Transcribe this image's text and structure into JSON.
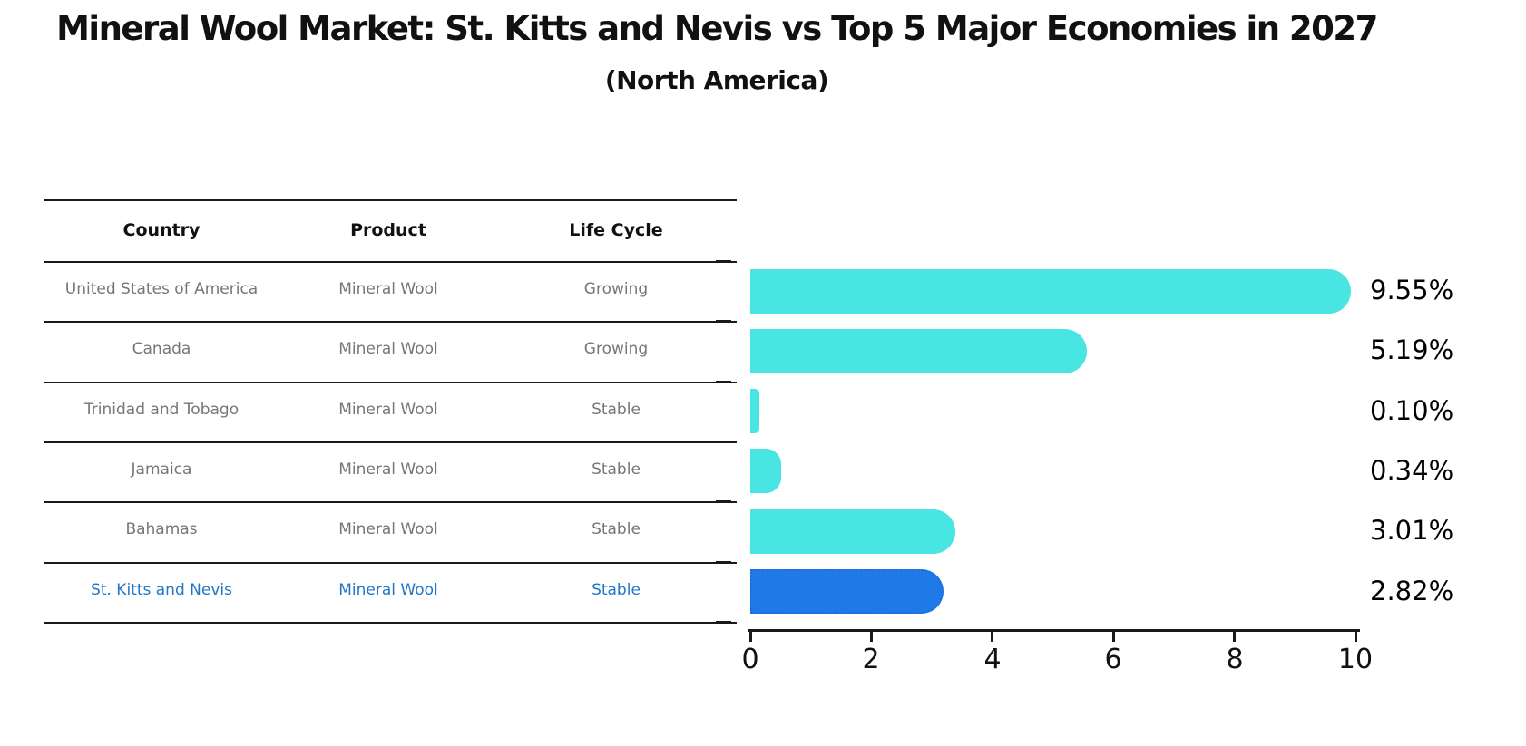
{
  "table": {
    "headers": [
      "Country",
      "Product",
      "Life Cycle"
    ],
    "rows": [
      {
        "country": "United States of America",
        "product": "Mineral Wool",
        "life_cycle": "Growing",
        "highlighted": false
      },
      {
        "country": "Canada",
        "product": "Mineral Wool",
        "life_cycle": "Growing",
        "highlighted": false
      },
      {
        "country": "Trinidad and Tobago",
        "product": "Mineral Wool",
        "life_cycle": "Stable",
        "highlighted": false
      },
      {
        "country": "Jamaica",
        "product": "Mineral Wool",
        "life_cycle": "Stable",
        "highlighted": false
      },
      {
        "country": "Bahamas",
        "product": "Mineral Wool",
        "life_cycle": "Stable",
        "highlighted": false
      },
      {
        "country": "St. Kitts and Nevis",
        "product": "Mineral Wool",
        "life_cycle": "Stable",
        "highlighted": true
      }
    ]
  },
  "chart_data": {
    "type": "bar",
    "orientation": "horizontal",
    "title": "Mineral Wool Market: St. Kitts and Nevis vs Top 5 Major Economies in 2027",
    "subtitle": "(North America)",
    "categories": [
      "United States of America",
      "Canada",
      "Trinidad and Tobago",
      "Jamaica",
      "Bahamas",
      "St. Kitts and Nevis"
    ],
    "values": [
      9.55,
      5.19,
      0.1,
      0.34,
      3.01,
      2.82
    ],
    "value_labels": [
      "9.55%",
      "5.19%",
      "0.10%",
      "0.34%",
      "3.01%",
      "2.82%"
    ],
    "xlabel": "",
    "ylabel": "",
    "xlim": [
      0,
      10
    ],
    "xticks": [
      0,
      2,
      4,
      6,
      8,
      10
    ],
    "grid": false,
    "legend": false,
    "highlight_category": "St. Kitts and Nevis"
  },
  "colors": {
    "bar_default": "#48e5e3",
    "bar_highlight": "#1f7ae8",
    "bar_highlight_border": "#1a6edd",
    "row_text": "#767676",
    "row_text_highlight": "#2077c8",
    "header_text": "#111111",
    "line": "#1a1a1a"
  }
}
